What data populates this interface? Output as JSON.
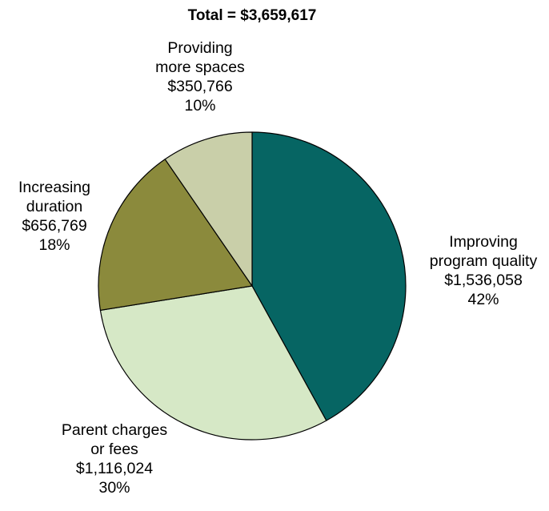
{
  "chart_data": {
    "type": "pie",
    "title": "Total = $3,659,617",
    "start": "12 o'clock, clockwise",
    "slices": [
      {
        "lines": [
          "Improving",
          "program quality",
          "$1,536,058",
          "42%"
        ],
        "value": 1536058,
        "percent": 42,
        "color": "#066563"
      },
      {
        "lines": [
          "Parent charges",
          "or fees",
          "$1,116,024",
          "30%"
        ],
        "value": 1116024,
        "percent": 30,
        "color": "#d6e8c6"
      },
      {
        "lines": [
          "Increasing",
          "duration",
          "$656,769",
          "18%"
        ],
        "value": 656769,
        "percent": 18,
        "color": "#8b8a3c"
      },
      {
        "lines": [
          "Providing",
          "more spaces",
          "$350,766",
          "10%"
        ],
        "value": 350766,
        "percent": 10,
        "color": "#c9cfa9"
      }
    ]
  }
}
